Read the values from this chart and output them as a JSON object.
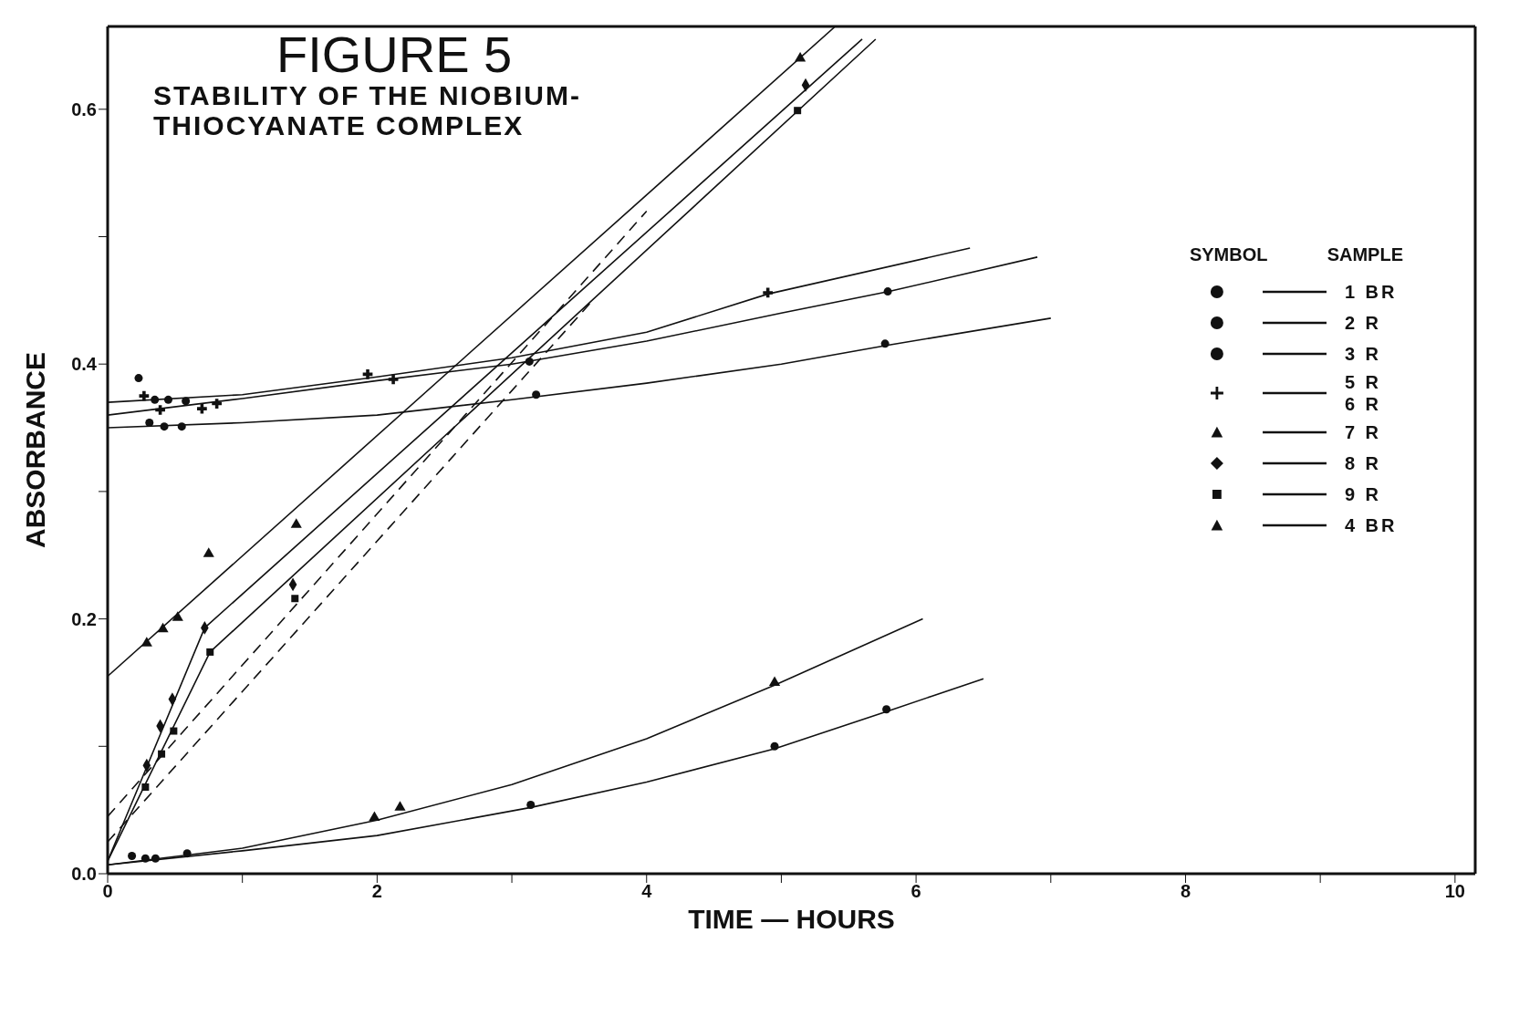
{
  "chart_data": {
    "type": "scatter",
    "title": "FIGURE 5",
    "subtitle": "STABILITY OF THE NIOBIUM-\nTHIOCYANATE COMPLEX",
    "xlabel": "TIME — HOURS",
    "ylabel": "ABSORBANCE",
    "legend_title": "SYMBOL SAMPLE",
    "legend": "right",
    "grid": false,
    "xlim": [
      0,
      10.15
    ],
    "ylim": [
      0,
      0.665
    ],
    "xticks": [
      0,
      {
        "value": 1,
        "label": null
      },
      2,
      {
        "value": 3,
        "label": null
      },
      4,
      {
        "value": 5,
        "label": null
      },
      6,
      {
        "value": 7,
        "label": null
      },
      8,
      {
        "value": 9,
        "label": null
      },
      10
    ],
    "yticks": [
      {
        "value": 0,
        "label": "0.0"
      },
      {
        "value": 0.1,
        "label": null
      },
      {
        "value": 0.2,
        "label": "0.2"
      },
      {
        "value": 0.3,
        "label": null
      },
      {
        "value": 0.4,
        "label": "0.4"
      },
      {
        "value": 0.5,
        "label": null
      },
      {
        "value": 0.6,
        "label": "0.6"
      }
    ],
    "series": [
      {
        "name": "1 BR",
        "marker": "circle",
        "color": "#111111",
        "x": [
          0.18,
          0.28,
          0.355,
          0.59,
          3.14,
          4.95,
          5.78
        ],
        "values": [
          0.014,
          0.012,
          0.012,
          0.016,
          0.054,
          0.1,
          0.129
        ]
      },
      {
        "name": "2 R",
        "marker": "circle",
        "color": "#111111",
        "x": [
          0.23,
          0.35,
          0.45,
          0.58,
          3.13,
          5.79
        ],
        "values": [
          0.389,
          0.372,
          0.372,
          0.371,
          0.402,
          0.457
        ]
      },
      {
        "name": "3 R",
        "marker": "circle",
        "color": "#111111",
        "x": [
          0.31,
          0.42,
          0.55,
          3.18,
          5.77
        ],
        "values": [
          0.354,
          0.351,
          0.351,
          0.376,
          0.416
        ]
      },
      {
        "name": "5 R\n6 R",
        "marker": "cross",
        "color": "#111111",
        "x": [
          0.27,
          0.39,
          0.7,
          0.81,
          1.93,
          2.12,
          4.9
        ],
        "values": [
          0.375,
          0.364,
          0.365,
          0.369,
          0.392,
          0.388,
          0.456
        ]
      },
      {
        "name": "7 R",
        "marker": "triangle",
        "color": "#111111",
        "x": [
          0.29,
          0.41,
          0.52,
          0.75,
          1.4,
          5.14
        ],
        "values": [
          0.181,
          0.192,
          0.201,
          0.251,
          0.274,
          0.64
        ]
      },
      {
        "name": "8 R",
        "marker": "diamond",
        "color": "#111111",
        "x": [
          0.29,
          0.39,
          0.48,
          0.72,
          1.375,
          5.18
        ],
        "values": [
          0.085,
          0.116,
          0.137,
          0.193,
          0.227,
          0.619
        ]
      },
      {
        "name": "9 R",
        "marker": "square",
        "color": "#111111",
        "x": [
          0.28,
          0.4,
          0.49,
          0.76,
          1.39,
          5.12
        ],
        "values": [
          0.068,
          0.094,
          0.112,
          0.174,
          0.216,
          0.599
        ]
      },
      {
        "name": "4 BR",
        "marker": "triangle",
        "color": "#111111",
        "x": [
          1.98,
          2.17,
          4.95
        ],
        "values": [
          0.044,
          0.052,
          0.15
        ]
      },
      {
        "type": "line",
        "marker": "none",
        "line_style": "solid",
        "color": "#111111",
        "x": [
          0,
          1,
          2,
          3.14,
          4,
          4.95,
          5.8,
          6.5
        ],
        "values": [
          0.007,
          0.018,
          0.03,
          0.052,
          0.072,
          0.098,
          0.128,
          0.153
        ]
      },
      {
        "type": "line",
        "marker": "none",
        "line_style": "solid",
        "color": "#111111",
        "x": [
          0,
          1,
          2,
          3,
          4,
          4.95,
          6.05
        ],
        "values": [
          0.007,
          0.02,
          0.042,
          0.07,
          0.106,
          0.148,
          0.2
        ]
      },
      {
        "type": "line",
        "marker": "none",
        "line_style": "solid",
        "color": "#111111",
        "x": [
          0,
          1,
          2,
          3,
          4,
          5,
          5.8,
          6.9
        ],
        "values": [
          0.36,
          0.373,
          0.387,
          0.4,
          0.418,
          0.44,
          0.457,
          0.484
        ]
      },
      {
        "type": "line",
        "marker": "none",
        "line_style": "solid",
        "color": "#111111",
        "x": [
          0,
          1,
          2,
          3,
          4,
          4.9,
          6.4
        ],
        "values": [
          0.37,
          0.376,
          0.39,
          0.405,
          0.425,
          0.455,
          0.491
        ]
      },
      {
        "type": "line",
        "marker": "none",
        "line_style": "solid",
        "color": "#111111",
        "x": [
          0,
          1,
          2,
          3,
          4,
          5,
          5.8,
          7
        ],
        "values": [
          0.35,
          0.354,
          0.36,
          0.372,
          0.385,
          0.4,
          0.415,
          0.436
        ]
      },
      {
        "type": "line",
        "marker": "none",
        "line_style": "solid",
        "color": "#111111",
        "x": [
          0,
          5.4
        ],
        "values": [
          0.155,
          0.665
        ]
      },
      {
        "type": "line",
        "marker": "none",
        "line_style": "solid",
        "color": "#111111",
        "x": [
          0,
          0.72,
          5.6
        ],
        "values": [
          0.01,
          0.193,
          0.655
        ]
      },
      {
        "type": "line",
        "marker": "none",
        "line_style": "solid",
        "color": "#111111",
        "x": [
          0,
          0.76,
          5.7
        ],
        "values": [
          0.01,
          0.174,
          0.655
        ]
      },
      {
        "type": "line",
        "marker": "none",
        "line_style": "dashed",
        "color": "#111111",
        "x": [
          0,
          4
        ],
        "values": [
          0.045,
          0.52
        ]
      },
      {
        "type": "line",
        "marker": "none",
        "line_style": "dashed",
        "color": "#111111",
        "x": [
          0,
          3.6
        ],
        "values": [
          0.025,
          0.45
        ]
      }
    ]
  }
}
